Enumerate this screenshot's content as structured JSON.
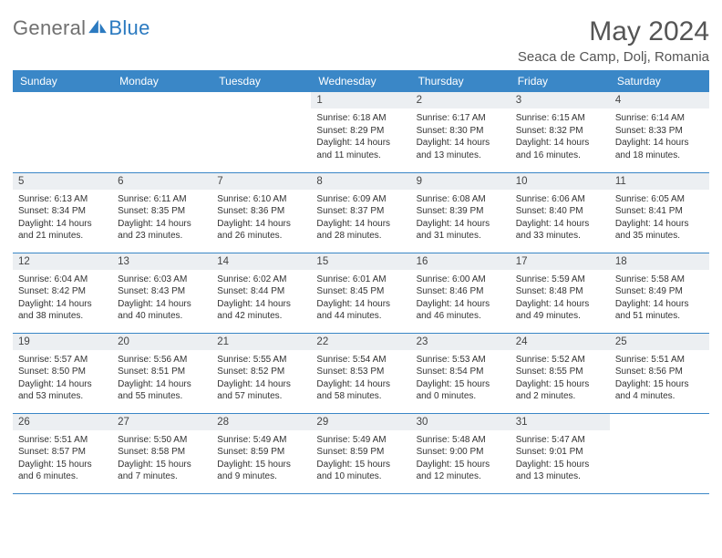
{
  "brand": {
    "part1": "General",
    "part2": "Blue"
  },
  "title": "May 2024",
  "location": "Seaca de Camp, Dolj, Romania",
  "colors": {
    "header_bg": "#3a87c7",
    "header_text": "#ffffff",
    "daynum_bg": "#eceff2",
    "rule": "#3a87c7",
    "brand_gray": "#707070",
    "brand_blue": "#2b7ac0"
  },
  "weekdays": [
    "Sunday",
    "Monday",
    "Tuesday",
    "Wednesday",
    "Thursday",
    "Friday",
    "Saturday"
  ],
  "cells": [
    {
      "n": "",
      "sr": "",
      "ss": "",
      "dl": ""
    },
    {
      "n": "",
      "sr": "",
      "ss": "",
      "dl": ""
    },
    {
      "n": "",
      "sr": "",
      "ss": "",
      "dl": ""
    },
    {
      "n": "1",
      "sr": "Sunrise: 6:18 AM",
      "ss": "Sunset: 8:29 PM",
      "dl": "Daylight: 14 hours and 11 minutes."
    },
    {
      "n": "2",
      "sr": "Sunrise: 6:17 AM",
      "ss": "Sunset: 8:30 PM",
      "dl": "Daylight: 14 hours and 13 minutes."
    },
    {
      "n": "3",
      "sr": "Sunrise: 6:15 AM",
      "ss": "Sunset: 8:32 PM",
      "dl": "Daylight: 14 hours and 16 minutes."
    },
    {
      "n": "4",
      "sr": "Sunrise: 6:14 AM",
      "ss": "Sunset: 8:33 PM",
      "dl": "Daylight: 14 hours and 18 minutes."
    },
    {
      "n": "5",
      "sr": "Sunrise: 6:13 AM",
      "ss": "Sunset: 8:34 PM",
      "dl": "Daylight: 14 hours and 21 minutes."
    },
    {
      "n": "6",
      "sr": "Sunrise: 6:11 AM",
      "ss": "Sunset: 8:35 PM",
      "dl": "Daylight: 14 hours and 23 minutes."
    },
    {
      "n": "7",
      "sr": "Sunrise: 6:10 AM",
      "ss": "Sunset: 8:36 PM",
      "dl": "Daylight: 14 hours and 26 minutes."
    },
    {
      "n": "8",
      "sr": "Sunrise: 6:09 AM",
      "ss": "Sunset: 8:37 PM",
      "dl": "Daylight: 14 hours and 28 minutes."
    },
    {
      "n": "9",
      "sr": "Sunrise: 6:08 AM",
      "ss": "Sunset: 8:39 PM",
      "dl": "Daylight: 14 hours and 31 minutes."
    },
    {
      "n": "10",
      "sr": "Sunrise: 6:06 AM",
      "ss": "Sunset: 8:40 PM",
      "dl": "Daylight: 14 hours and 33 minutes."
    },
    {
      "n": "11",
      "sr": "Sunrise: 6:05 AM",
      "ss": "Sunset: 8:41 PM",
      "dl": "Daylight: 14 hours and 35 minutes."
    },
    {
      "n": "12",
      "sr": "Sunrise: 6:04 AM",
      "ss": "Sunset: 8:42 PM",
      "dl": "Daylight: 14 hours and 38 minutes."
    },
    {
      "n": "13",
      "sr": "Sunrise: 6:03 AM",
      "ss": "Sunset: 8:43 PM",
      "dl": "Daylight: 14 hours and 40 minutes."
    },
    {
      "n": "14",
      "sr": "Sunrise: 6:02 AM",
      "ss": "Sunset: 8:44 PM",
      "dl": "Daylight: 14 hours and 42 minutes."
    },
    {
      "n": "15",
      "sr": "Sunrise: 6:01 AM",
      "ss": "Sunset: 8:45 PM",
      "dl": "Daylight: 14 hours and 44 minutes."
    },
    {
      "n": "16",
      "sr": "Sunrise: 6:00 AM",
      "ss": "Sunset: 8:46 PM",
      "dl": "Daylight: 14 hours and 46 minutes."
    },
    {
      "n": "17",
      "sr": "Sunrise: 5:59 AM",
      "ss": "Sunset: 8:48 PM",
      "dl": "Daylight: 14 hours and 49 minutes."
    },
    {
      "n": "18",
      "sr": "Sunrise: 5:58 AM",
      "ss": "Sunset: 8:49 PM",
      "dl": "Daylight: 14 hours and 51 minutes."
    },
    {
      "n": "19",
      "sr": "Sunrise: 5:57 AM",
      "ss": "Sunset: 8:50 PM",
      "dl": "Daylight: 14 hours and 53 minutes."
    },
    {
      "n": "20",
      "sr": "Sunrise: 5:56 AM",
      "ss": "Sunset: 8:51 PM",
      "dl": "Daylight: 14 hours and 55 minutes."
    },
    {
      "n": "21",
      "sr": "Sunrise: 5:55 AM",
      "ss": "Sunset: 8:52 PM",
      "dl": "Daylight: 14 hours and 57 minutes."
    },
    {
      "n": "22",
      "sr": "Sunrise: 5:54 AM",
      "ss": "Sunset: 8:53 PM",
      "dl": "Daylight: 14 hours and 58 minutes."
    },
    {
      "n": "23",
      "sr": "Sunrise: 5:53 AM",
      "ss": "Sunset: 8:54 PM",
      "dl": "Daylight: 15 hours and 0 minutes."
    },
    {
      "n": "24",
      "sr": "Sunrise: 5:52 AM",
      "ss": "Sunset: 8:55 PM",
      "dl": "Daylight: 15 hours and 2 minutes."
    },
    {
      "n": "25",
      "sr": "Sunrise: 5:51 AM",
      "ss": "Sunset: 8:56 PM",
      "dl": "Daylight: 15 hours and 4 minutes."
    },
    {
      "n": "26",
      "sr": "Sunrise: 5:51 AM",
      "ss": "Sunset: 8:57 PM",
      "dl": "Daylight: 15 hours and 6 minutes."
    },
    {
      "n": "27",
      "sr": "Sunrise: 5:50 AM",
      "ss": "Sunset: 8:58 PM",
      "dl": "Daylight: 15 hours and 7 minutes."
    },
    {
      "n": "28",
      "sr": "Sunrise: 5:49 AM",
      "ss": "Sunset: 8:59 PM",
      "dl": "Daylight: 15 hours and 9 minutes."
    },
    {
      "n": "29",
      "sr": "Sunrise: 5:49 AM",
      "ss": "Sunset: 8:59 PM",
      "dl": "Daylight: 15 hours and 10 minutes."
    },
    {
      "n": "30",
      "sr": "Sunrise: 5:48 AM",
      "ss": "Sunset: 9:00 PM",
      "dl": "Daylight: 15 hours and 12 minutes."
    },
    {
      "n": "31",
      "sr": "Sunrise: 5:47 AM",
      "ss": "Sunset: 9:01 PM",
      "dl": "Daylight: 15 hours and 13 minutes."
    },
    {
      "n": "",
      "sr": "",
      "ss": "",
      "dl": ""
    }
  ]
}
